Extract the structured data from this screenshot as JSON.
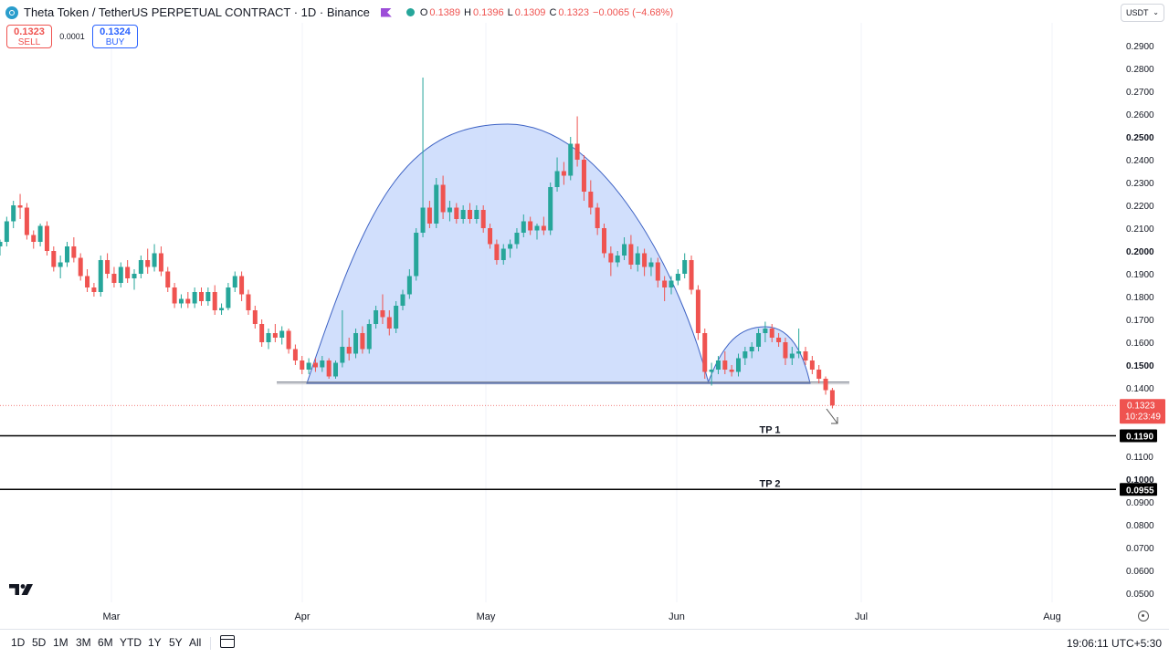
{
  "header": {
    "title": "Theta Token / TetherUS PERPETUAL CONTRACT · 1D · Binance",
    "ohlc": [
      {
        "k": "O",
        "v": "0.1389"
      },
      {
        "k": "H",
        "v": "0.1396"
      },
      {
        "k": "L",
        "v": "0.1309"
      },
      {
        "k": "C",
        "v": "0.1323"
      },
      {
        "k": "",
        "v": "−0.0065 (−4.68%)"
      }
    ]
  },
  "trade": {
    "sell_price": "0.1323",
    "sell_label": "SELL",
    "spread": "0.0001",
    "buy_price": "0.1324",
    "buy_label": "BUY"
  },
  "currency": "USDT",
  "colors": {
    "up": "#26a69a",
    "down": "#ef5350",
    "pattern_fill": "#c9d9fb",
    "pattern_stroke": "#3d62c4",
    "accent": "#2962ff"
  },
  "timeframes": [
    "1D",
    "5D",
    "1M",
    "3M",
    "6M",
    "YTD",
    "1Y",
    "5Y",
    "All"
  ],
  "clock": "19:06:11 UTC+5:30",
  "chart_data": {
    "type": "candlestick",
    "y_axis": {
      "ticks": [
        "0.2900",
        "0.2800",
        "0.2700",
        "0.2600",
        "0.2500",
        "0.2400",
        "0.2300",
        "0.2200",
        "0.2100",
        "0.2000",
        "0.1900",
        "0.1800",
        "0.1700",
        "0.1600",
        "0.1500",
        "0.1400",
        "0.1100",
        "0.1000",
        "0.0900",
        "0.0800",
        "0.0700",
        "0.0600",
        "0.0500"
      ],
      "bold_ticks": [
        "0.2500",
        "0.2000",
        "0.1500",
        "0.1000"
      ]
    },
    "x_axis": {
      "labels": [
        "Mar",
        "Apr",
        "May",
        "Jun",
        "Jul",
        "Aug"
      ]
    },
    "last_price": {
      "value": "0.1323",
      "countdown": "10:23:49"
    },
    "levels": [
      {
        "label": "TP 1",
        "value": 0.119,
        "value_label": "0.1190"
      },
      {
        "label": "TP 2",
        "value": 0.0955,
        "value_label": "0.0955"
      }
    ],
    "neckline": 0.1425,
    "candles": [
      [
        0.202,
        0.205,
        0.198,
        0.204
      ],
      [
        0.204,
        0.215,
        0.202,
        0.213
      ],
      [
        0.213,
        0.222,
        0.21,
        0.22
      ],
      [
        0.22,
        0.225,
        0.214,
        0.219
      ],
      [
        0.219,
        0.221,
        0.205,
        0.207
      ],
      [
        0.207,
        0.209,
        0.201,
        0.204
      ],
      [
        0.204,
        0.212,
        0.202,
        0.211
      ],
      [
        0.211,
        0.213,
        0.198,
        0.2
      ],
      [
        0.2,
        0.202,
        0.191,
        0.193
      ],
      [
        0.193,
        0.198,
        0.188,
        0.195
      ],
      [
        0.195,
        0.204,
        0.193,
        0.202
      ],
      [
        0.202,
        0.206,
        0.195,
        0.197
      ],
      [
        0.197,
        0.199,
        0.187,
        0.189
      ],
      [
        0.189,
        0.192,
        0.182,
        0.184
      ],
      [
        0.184,
        0.186,
        0.18,
        0.182
      ],
      [
        0.182,
        0.198,
        0.18,
        0.196
      ],
      [
        0.196,
        0.199,
        0.188,
        0.19
      ],
      [
        0.19,
        0.193,
        0.184,
        0.186
      ],
      [
        0.186,
        0.195,
        0.184,
        0.193
      ],
      [
        0.193,
        0.196,
        0.186,
        0.188
      ],
      [
        0.188,
        0.192,
        0.183,
        0.19
      ],
      [
        0.19,
        0.198,
        0.188,
        0.196
      ],
      [
        0.196,
        0.201,
        0.19,
        0.193
      ],
      [
        0.193,
        0.203,
        0.191,
        0.199
      ],
      [
        0.199,
        0.202,
        0.189,
        0.191
      ],
      [
        0.191,
        0.193,
        0.182,
        0.184
      ],
      [
        0.184,
        0.186,
        0.175,
        0.177
      ],
      [
        0.177,
        0.181,
        0.175,
        0.179
      ],
      [
        0.179,
        0.182,
        0.175,
        0.177
      ],
      [
        0.177,
        0.184,
        0.175,
        0.182
      ],
      [
        0.182,
        0.184,
        0.176,
        0.178
      ],
      [
        0.178,
        0.184,
        0.176,
        0.182
      ],
      [
        0.182,
        0.185,
        0.172,
        0.174
      ],
      [
        0.174,
        0.177,
        0.172,
        0.175
      ],
      [
        0.175,
        0.186,
        0.174,
        0.184
      ],
      [
        0.184,
        0.191,
        0.182,
        0.189
      ],
      [
        0.189,
        0.191,
        0.178,
        0.181
      ],
      [
        0.181,
        0.183,
        0.172,
        0.174
      ],
      [
        0.174,
        0.176,
        0.166,
        0.168
      ],
      [
        0.168,
        0.17,
        0.158,
        0.16
      ],
      [
        0.16,
        0.166,
        0.157,
        0.164
      ],
      [
        0.164,
        0.168,
        0.16,
        0.162
      ],
      [
        0.162,
        0.167,
        0.159,
        0.165
      ],
      [
        0.165,
        0.166,
        0.155,
        0.157
      ],
      [
        0.157,
        0.159,
        0.15,
        0.152
      ],
      [
        0.152,
        0.154,
        0.146,
        0.148
      ],
      [
        0.148,
        0.153,
        0.146,
        0.151
      ],
      [
        0.151,
        0.153,
        0.147,
        0.149
      ],
      [
        0.149,
        0.154,
        0.147,
        0.152
      ],
      [
        0.152,
        0.153,
        0.144,
        0.145
      ],
      [
        0.145,
        0.152,
        0.144,
        0.151
      ],
      [
        0.151,
        0.174,
        0.149,
        0.158
      ],
      [
        0.158,
        0.162,
        0.152,
        0.155
      ],
      [
        0.155,
        0.166,
        0.153,
        0.164
      ],
      [
        0.164,
        0.167,
        0.155,
        0.157
      ],
      [
        0.157,
        0.17,
        0.155,
        0.168
      ],
      [
        0.168,
        0.176,
        0.166,
        0.174
      ],
      [
        0.174,
        0.181,
        0.168,
        0.171
      ],
      [
        0.171,
        0.174,
        0.163,
        0.166
      ],
      [
        0.166,
        0.178,
        0.164,
        0.176
      ],
      [
        0.176,
        0.183,
        0.174,
        0.181
      ],
      [
        0.181,
        0.192,
        0.179,
        0.189
      ],
      [
        0.189,
        0.21,
        0.187,
        0.208
      ],
      [
        0.208,
        0.276,
        0.206,
        0.219
      ],
      [
        0.219,
        0.222,
        0.21,
        0.212
      ],
      [
        0.212,
        0.232,
        0.21,
        0.229
      ],
      [
        0.229,
        0.233,
        0.214,
        0.217
      ],
      [
        0.217,
        0.222,
        0.213,
        0.219
      ],
      [
        0.219,
        0.221,
        0.212,
        0.214
      ],
      [
        0.214,
        0.22,
        0.212,
        0.218
      ],
      [
        0.218,
        0.221,
        0.212,
        0.214
      ],
      [
        0.214,
        0.22,
        0.212,
        0.218
      ],
      [
        0.218,
        0.22,
        0.208,
        0.21
      ],
      [
        0.21,
        0.212,
        0.201,
        0.203
      ],
      [
        0.203,
        0.205,
        0.194,
        0.196
      ],
      [
        0.196,
        0.203,
        0.194,
        0.201
      ],
      [
        0.201,
        0.205,
        0.197,
        0.203
      ],
      [
        0.203,
        0.21,
        0.201,
        0.208
      ],
      [
        0.208,
        0.216,
        0.206,
        0.213
      ],
      [
        0.213,
        0.215,
        0.207,
        0.209
      ],
      [
        0.209,
        0.212,
        0.205,
        0.211
      ],
      [
        0.211,
        0.215,
        0.207,
        0.209
      ],
      [
        0.209,
        0.23,
        0.207,
        0.228
      ],
      [
        0.228,
        0.241,
        0.226,
        0.235
      ],
      [
        0.235,
        0.239,
        0.229,
        0.233
      ],
      [
        0.233,
        0.25,
        0.231,
        0.247
      ],
      [
        0.247,
        0.259,
        0.237,
        0.24
      ],
      [
        0.24,
        0.242,
        0.222,
        0.226
      ],
      [
        0.226,
        0.231,
        0.216,
        0.219
      ],
      [
        0.219,
        0.221,
        0.207,
        0.21
      ],
      [
        0.21,
        0.212,
        0.197,
        0.199
      ],
      [
        0.199,
        0.202,
        0.189,
        0.195
      ],
      [
        0.195,
        0.2,
        0.193,
        0.198
      ],
      [
        0.198,
        0.206,
        0.196,
        0.203
      ],
      [
        0.203,
        0.207,
        0.192,
        0.194
      ],
      [
        0.194,
        0.202,
        0.191,
        0.199
      ],
      [
        0.199,
        0.201,
        0.189,
        0.193
      ],
      [
        0.193,
        0.197,
        0.189,
        0.195
      ],
      [
        0.195,
        0.197,
        0.184,
        0.187
      ],
      [
        0.187,
        0.189,
        0.178,
        0.184
      ],
      [
        0.184,
        0.189,
        0.181,
        0.187
      ],
      [
        0.187,
        0.192,
        0.185,
        0.19
      ],
      [
        0.19,
        0.199,
        0.188,
        0.196
      ],
      [
        0.196,
        0.198,
        0.181,
        0.183
      ],
      [
        0.183,
        0.185,
        0.161,
        0.164
      ],
      [
        0.164,
        0.166,
        0.144,
        0.147
      ],
      [
        0.147,
        0.151,
        0.141,
        0.148
      ],
      [
        0.148,
        0.154,
        0.146,
        0.152
      ],
      [
        0.152,
        0.156,
        0.146,
        0.148
      ],
      [
        0.148,
        0.15,
        0.145,
        0.147
      ],
      [
        0.147,
        0.155,
        0.145,
        0.153
      ],
      [
        0.153,
        0.158,
        0.15,
        0.156
      ],
      [
        0.156,
        0.16,
        0.153,
        0.158
      ],
      [
        0.158,
        0.166,
        0.156,
        0.164
      ],
      [
        0.164,
        0.169,
        0.16,
        0.166
      ],
      [
        0.166,
        0.168,
        0.16,
        0.162
      ],
      [
        0.162,
        0.164,
        0.158,
        0.16
      ],
      [
        0.16,
        0.162,
        0.15,
        0.153
      ],
      [
        0.153,
        0.158,
        0.15,
        0.155
      ],
      [
        0.155,
        0.166,
        0.153,
        0.156
      ],
      [
        0.156,
        0.158,
        0.15,
        0.152
      ],
      [
        0.152,
        0.154,
        0.146,
        0.148
      ],
      [
        0.148,
        0.15,
        0.142,
        0.144
      ],
      [
        0.144,
        0.145,
        0.137,
        0.139
      ],
      [
        0.139,
        0.14,
        0.131,
        0.1323
      ]
    ]
  }
}
